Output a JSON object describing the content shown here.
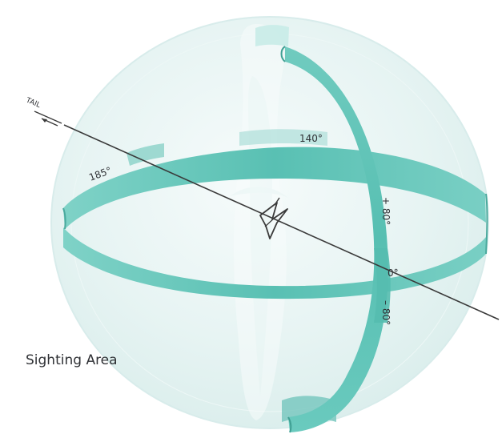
{
  "diagram": {
    "labels": {
      "tail": "TAIL",
      "deg140": "140°",
      "deg185": "185°",
      "plus80": "+ 80°",
      "zero": "0°",
      "minus80": "– 80°",
      "sighting_area": "Sighting Area"
    },
    "colors": {
      "sphere_fill": "#e6f3f2",
      "sphere_shadow": "#d5ebea",
      "band": "#63c7bb",
      "band_dark": "#4ba99e",
      "band_light": "#b9e5df",
      "axis": "#3a3a3a",
      "text": "#2f3135"
    },
    "icons": [
      "arrow-left-icon",
      "aircraft-icon"
    ]
  }
}
